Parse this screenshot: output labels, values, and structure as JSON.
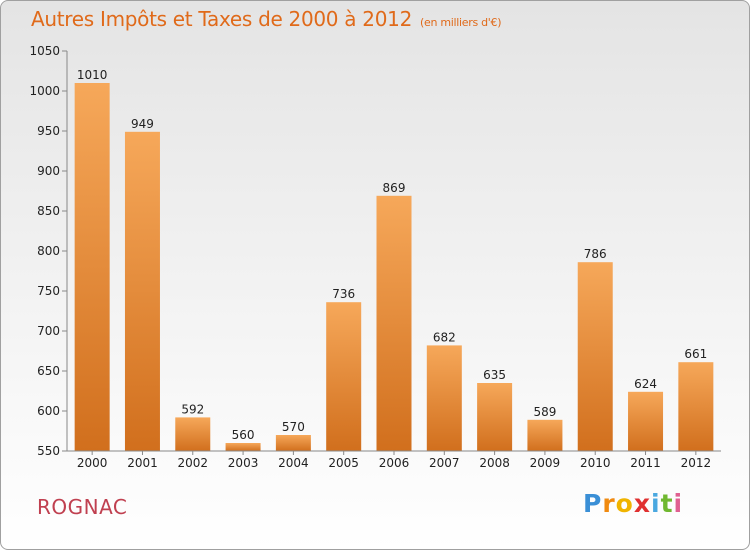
{
  "chart_data": {
    "type": "bar",
    "title": "Autres Impôts et Taxes de 2000 à 2012",
    "subtitle": "(en milliers d'€)",
    "categories": [
      "2000",
      "2001",
      "2002",
      "2003",
      "2004",
      "2005",
      "2006",
      "2007",
      "2008",
      "2009",
      "2010",
      "2011",
      "2012"
    ],
    "values": [
      1010,
      949,
      592,
      560,
      570,
      736,
      869,
      682,
      635,
      589,
      786,
      624,
      661
    ],
    "ylim": [
      550,
      1050
    ],
    "yticks": [
      550,
      600,
      650,
      700,
      750,
      800,
      850,
      900,
      950,
      1000,
      1050
    ],
    "grid": false,
    "legend": "none",
    "colors": {
      "bar_top": "#f6a85a",
      "bar_bottom": "#d16f1d",
      "title": "#e06a1a",
      "city": "#c04050"
    }
  },
  "city": "ROGNAC",
  "logo": {
    "letters": [
      "P",
      "r",
      "o",
      "x",
      "i",
      "t",
      "i"
    ],
    "colors": [
      "#3a8fd6",
      "#f08a10",
      "#f0b400",
      "#e03030",
      "#4aa8e0",
      "#70b830",
      "#e06090"
    ]
  }
}
